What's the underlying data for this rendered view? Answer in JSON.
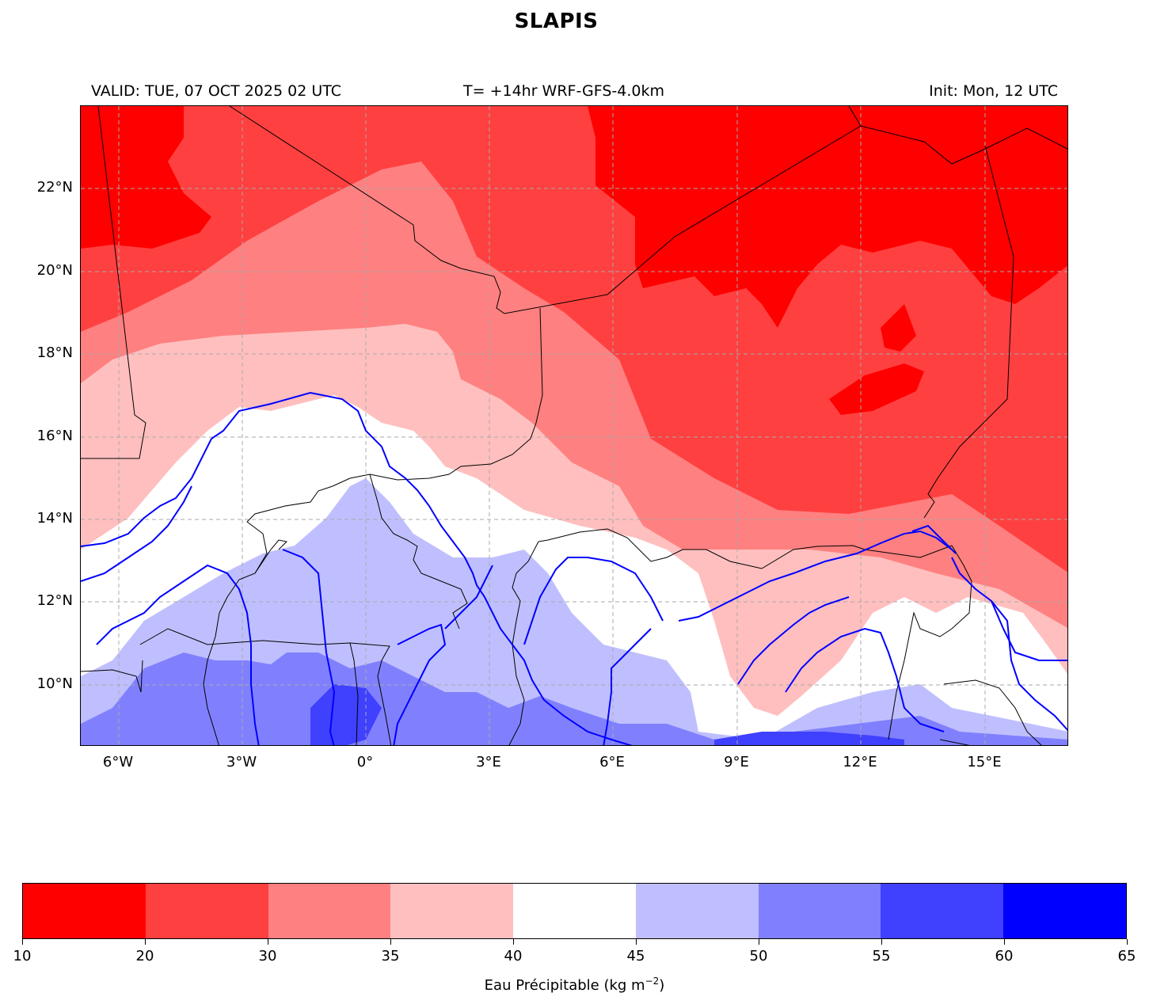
{
  "title": "SLAPIS",
  "subtitle": {
    "valid": "VALID: TUE, 07 OCT 2025 02 UTC",
    "model": "T= +14hr WRF-GFS-4.0km",
    "init": "Init: Mon, 12 UTC"
  },
  "map": {
    "lat_labels": [
      "22°N",
      "20°N",
      "18°N",
      "16°N",
      "14°N",
      "12°N",
      "10°N"
    ],
    "lon_labels": [
      "6°W",
      "3°W",
      "0°",
      "3°E",
      "6°E",
      "9°E",
      "12°E",
      "15°E"
    ],
    "gridlines": "dashed",
    "extent": {
      "lon": [
        -7,
        17
      ],
      "lat": [
        8.5,
        24
      ]
    }
  },
  "colorbar": {
    "ticks": [
      "10",
      "20",
      "30",
      "35",
      "40",
      "45",
      "50",
      "55",
      "60",
      "65"
    ],
    "colors": [
      "#ff0000",
      "#ff4040",
      "#ff8080",
      "#ffbfbf",
      "#ffffff",
      "#bfbfff",
      "#8080ff",
      "#4040ff",
      "#0000ff"
    ],
    "label_prefix": "Eau Précipitable (kg m",
    "label_exp": "−2",
    "label_suffix": ")"
  },
  "colors": {
    "river": "#0000ff",
    "border": "#000000",
    "grid": "#aaaaaa"
  }
}
